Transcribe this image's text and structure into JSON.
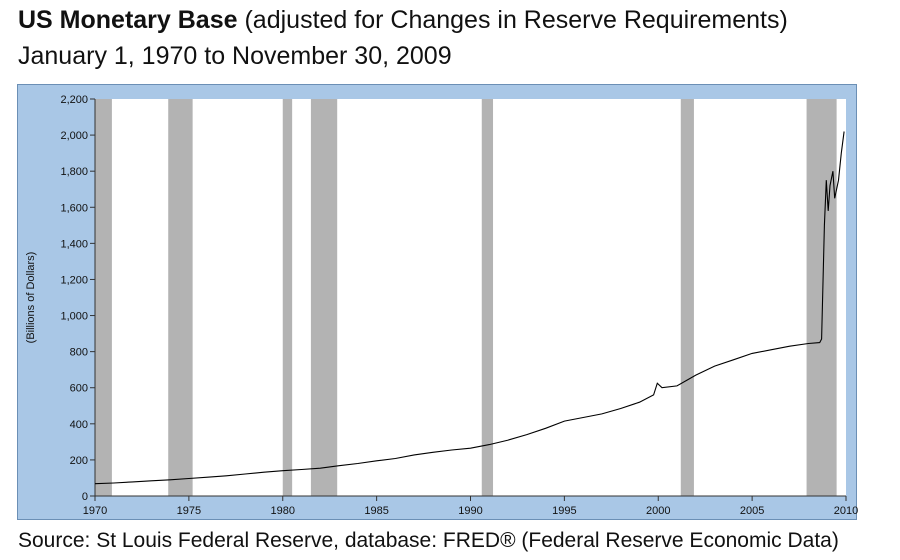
{
  "title_bold": "US Monetary Base",
  "title_rest": " (adjusted for Changes in Reserve Requirements)",
  "subtitle": "January 1, 1970 to November 30, 2009",
  "source": "Source: St Louis Federal Reserve, database: FRED® (Federal Reserve Economic Data)",
  "colors": {
    "frame": "#a9c7e6",
    "plot_bg": "#ffffff",
    "recession": "#b3b3b3",
    "line": "#000000"
  },
  "chart_data": {
    "type": "line",
    "title": "US Monetary Base (adjusted for Changes in Reserve Requirements)",
    "subtitle": "January 1, 1970 to November 30, 2009",
    "xlabel": "",
    "ylabel": "(Billions of Dollars)",
    "xlim": [
      1970,
      2010
    ],
    "ylim": [
      0,
      2200
    ],
    "x_ticks": [
      1970,
      1975,
      1980,
      1985,
      1990,
      1995,
      2000,
      2005,
      2010
    ],
    "x_tick_labels": [
      "1970",
      "1975",
      "1980",
      "1985",
      "1990",
      "1995",
      "2000",
      "2005",
      "2010"
    ],
    "y_ticks": [
      0,
      200,
      400,
      600,
      800,
      1000,
      1200,
      1400,
      1600,
      1800,
      2000,
      2200
    ],
    "y_tick_labels": [
      "0",
      "200",
      "400",
      "600",
      "800",
      "1,000",
      "1,200",
      "1,400",
      "1,600",
      "1,800",
      "2,000",
      "2,200"
    ],
    "grid": false,
    "recession_shading": [
      [
        1970.0,
        1970.9
      ],
      [
        1973.9,
        1975.2
      ],
      [
        1980.0,
        1980.5
      ],
      [
        1981.5,
        1982.9
      ],
      [
        1990.6,
        1991.2
      ],
      [
        2001.2,
        2001.9
      ],
      [
        2007.9,
        2009.5
      ]
    ],
    "series": [
      {
        "x": [
          1970.0,
          1971.0,
          1972.0,
          1973.0,
          1974.0,
          1975.0,
          1976.0,
          1977.0,
          1978.0,
          1979.0,
          1980.0,
          1981.0,
          1982.0,
          1983.0,
          1984.0,
          1985.0,
          1986.0,
          1987.0,
          1988.0,
          1989.0,
          1990.0,
          1991.0,
          1992.0,
          1993.0,
          1994.0,
          1995.0,
          1996.0,
          1997.0,
          1998.0,
          1999.0,
          1999.75,
          1999.95,
          2000.2,
          2001.0,
          2001.5,
          2002.0,
          2003.0,
          2004.0,
          2005.0,
          2006.0,
          2007.0,
          2008.0,
          2008.6,
          2008.7,
          2008.85,
          2008.95,
          2009.05,
          2009.15,
          2009.3,
          2009.4,
          2009.5,
          2009.6,
          2009.75,
          2009.9
        ],
        "values": [
          68,
          72,
          78,
          84,
          90,
          97,
          104,
          112,
          122,
          132,
          140,
          147,
          154,
          168,
          180,
          195,
          208,
          228,
          242,
          255,
          265,
          285,
          310,
          340,
          375,
          415,
          435,
          455,
          485,
          520,
          560,
          625,
          600,
          610,
          640,
          670,
          720,
          755,
          790,
          810,
          830,
          845,
          850,
          870,
          1500,
          1750,
          1580,
          1720,
          1800,
          1650,
          1700,
          1750,
          1900,
          2020
        ]
      }
    ]
  }
}
